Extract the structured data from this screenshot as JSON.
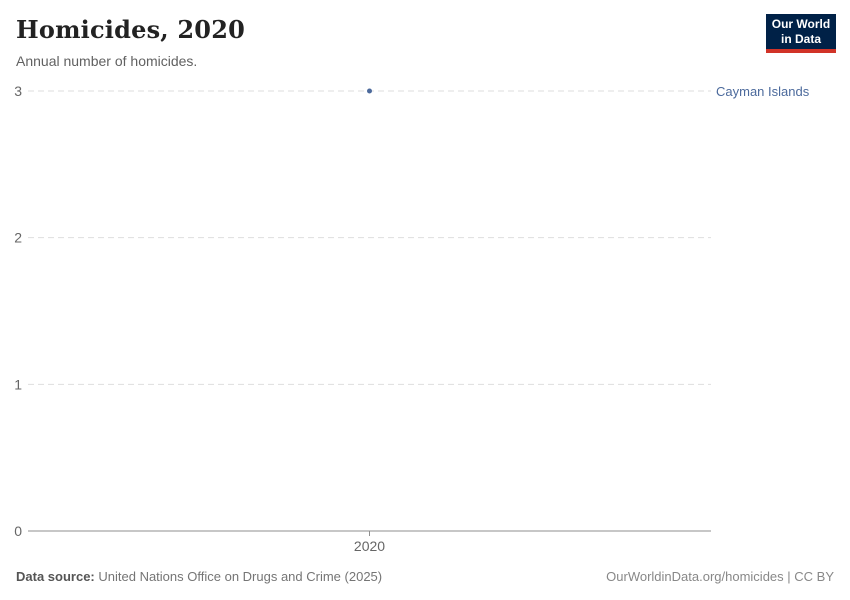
{
  "header": {
    "title": "Homicides, 2020",
    "subtitle": "Annual number of homicides.",
    "logo": {
      "line1": "Our World",
      "line2": "in Data",
      "bg_color": "#002147",
      "accent_color": "#d13328"
    }
  },
  "chart_data": {
    "type": "scatter",
    "title": "Homicides, 2020",
    "subtitle": "Annual number of homicides.",
    "series": [
      {
        "name": "Cayman Islands",
        "color": "#4C6A9C",
        "x": [
          2020
        ],
        "y": [
          3
        ]
      }
    ],
    "x_ticks": [
      "2020"
    ],
    "y_ticks": [
      0,
      1,
      2,
      3
    ],
    "ylim": [
      0,
      3
    ],
    "grid": true,
    "gridline_color": "#dedede",
    "axis_color": "#8f8f8f",
    "tick_label_color": "#666666",
    "entity_label": "Cayman Islands",
    "legend_position": "right"
  },
  "footer": {
    "source_label": "Data source:",
    "source_text": "United Nations Office on Drugs and Crime (2025)",
    "credit": "OurWorldinData.org/homicides | CC BY"
  }
}
